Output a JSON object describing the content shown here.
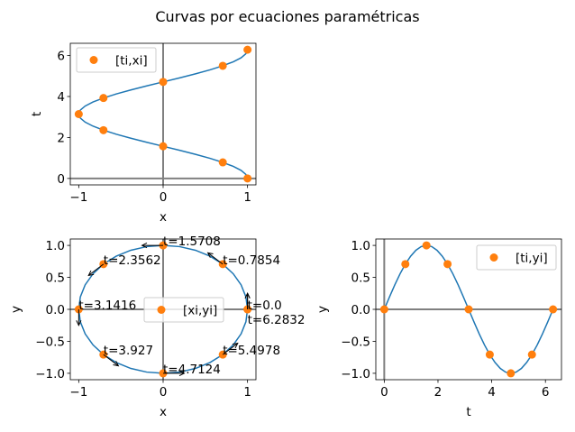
{
  "title": "Curvas por ecuaciones paramétricas",
  "colors": {
    "curve": "#1f77b4",
    "points": "#ff7f0e",
    "zero_lines": "#808080",
    "frame": "#000000"
  },
  "curve": {
    "t": [
      0,
      0.196,
      0.393,
      0.589,
      0.785,
      0.982,
      1.178,
      1.374,
      1.571,
      1.767,
      1.963,
      2.16,
      2.356,
      2.553,
      2.749,
      2.945,
      3.142,
      3.338,
      3.534,
      3.731,
      3.927,
      4.123,
      4.32,
      4.516,
      4.712,
      4.909,
      5.105,
      5.301,
      5.498,
      5.694,
      5.89,
      6.087,
      6.283
    ],
    "x": [
      1,
      0.981,
      0.924,
      0.831,
      0.707,
      0.556,
      0.383,
      0.195,
      0,
      -0.195,
      -0.383,
      -0.556,
      -0.707,
      -0.831,
      -0.924,
      -0.981,
      -1,
      -0.981,
      -0.924,
      -0.831,
      -0.707,
      -0.556,
      -0.383,
      -0.195,
      0,
      0.195,
      0.383,
      0.556,
      0.707,
      0.831,
      0.924,
      0.981,
      1
    ],
    "y": [
      0,
      0.195,
      0.383,
      0.556,
      0.707,
      0.831,
      0.924,
      0.981,
      1,
      0.981,
      0.924,
      0.831,
      0.707,
      0.556,
      0.383,
      0.195,
      0,
      -0.195,
      -0.383,
      -0.556,
      -0.707,
      -0.831,
      -0.924,
      -0.981,
      -1,
      -0.981,
      -0.924,
      -0.831,
      -0.707,
      -0.556,
      -0.383,
      -0.195,
      0
    ]
  },
  "points": {
    "ti": [
      0,
      0.7854,
      1.5708,
      2.3562,
      3.1416,
      3.927,
      4.7124,
      5.4978,
      6.2832
    ],
    "xi": [
      1,
      0.707,
      0,
      -0.707,
      -1,
      -0.707,
      0,
      0.707,
      1
    ],
    "yi": [
      0,
      0.707,
      1,
      0.707,
      0,
      -0.707,
      -1,
      -0.707,
      0
    ]
  },
  "chart_data": [
    {
      "type": "line+scatter",
      "x_var": "x",
      "y_var": "t",
      "xlabel": "x",
      "ylabel": "t",
      "xlim": [
        -1.1,
        1.1
      ],
      "ylim": [
        -0.314,
        6.597
      ],
      "xticks": [
        -1,
        0,
        1
      ],
      "xtick_labels": [
        "−1",
        "0",
        "1"
      ],
      "yticks": [
        0,
        2,
        4,
        6
      ],
      "ytick_labels": [
        "0",
        "2",
        "4",
        "6"
      ],
      "legend": {
        "label": "[ti,xi]",
        "placement": "upper-left"
      },
      "annotations": []
    },
    {
      "type": "line+scatter",
      "x_var": "x",
      "y_var": "y",
      "xlabel": "x",
      "ylabel": "y",
      "xlim": [
        -1.1,
        1.1
      ],
      "ylim": [
        -1.1,
        1.1
      ],
      "xticks": [
        -1,
        0,
        1
      ],
      "xtick_labels": [
        "−1",
        "0",
        "1"
      ],
      "yticks": [
        -1,
        -0.5,
        0,
        0.5,
        1
      ],
      "ytick_labels": [
        "−1.0",
        "−0.5",
        "0.0",
        "0.5",
        "1.0"
      ],
      "legend": {
        "label": "[xi,yi]",
        "placement": "center"
      },
      "annotations": [
        "t=0.0",
        "t=0.7854",
        "t=1.5708",
        "t=2.3562",
        "t=3.1416",
        "t=3.927",
        "t=4.7124",
        "t=5.4978",
        "t=6.2832"
      ]
    },
    {
      "type": "line+scatter",
      "x_var": "t",
      "y_var": "y",
      "xlabel": "t",
      "ylabel": "y",
      "xlim": [
        -0.314,
        6.597
      ],
      "ylim": [
        -1.1,
        1.1
      ],
      "xticks": [
        0,
        2,
        4,
        6
      ],
      "xtick_labels": [
        "0",
        "2",
        "4",
        "6"
      ],
      "yticks": [
        -1,
        -0.5,
        0,
        0.5,
        1
      ],
      "ytick_labels": [
        "−1.0",
        "−0.5",
        "0.0",
        "0.5",
        "1.0"
      ],
      "legend": {
        "label": "[ti,yi]",
        "placement": "upper-right"
      },
      "annotations": []
    }
  ]
}
